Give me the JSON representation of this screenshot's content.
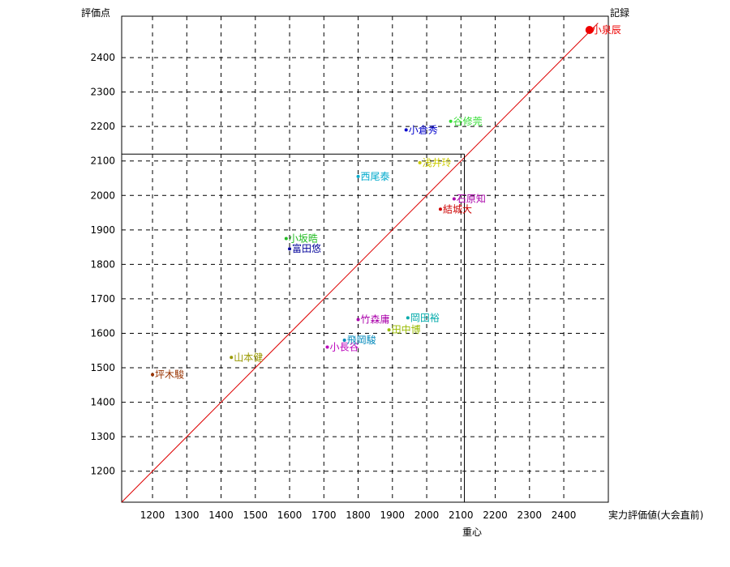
{
  "chart_data": {
    "type": "scatter",
    "title": "",
    "ylabel": "評価点",
    "xlabel": "実力評価値(大会直前)",
    "x_centroid_label": "重心",
    "record_label": "記録",
    "xlim": [
      1110,
      2530
    ],
    "ylim": [
      1110,
      2520
    ],
    "x_ticks": [
      1200,
      1300,
      1400,
      1500,
      1600,
      1700,
      1800,
      1900,
      2000,
      2100,
      2200,
      2300,
      2400
    ],
    "y_ticks": [
      1200,
      1300,
      1400,
      1500,
      1600,
      1700,
      1800,
      1900,
      2000,
      2100,
      2200,
      2300,
      2400
    ],
    "grid": true,
    "reference_line": {
      "x1": 1110,
      "y1": 1110,
      "x2": 2500,
      "y2": 2500,
      "color": "#dd0000"
    },
    "crosshair": {
      "x": 2110,
      "y": 2120
    },
    "points": [
      {
        "name": "小泉辰",
        "x": 2475,
        "y": 2480,
        "color": "#ee0000",
        "big": true
      },
      {
        "name": "谷修莞",
        "x": 2070,
        "y": 2215,
        "color": "#33dd33"
      },
      {
        "name": "小倉秀",
        "x": 1940,
        "y": 2190,
        "color": "#0000cc"
      },
      {
        "name": "浅井玲",
        "x": 1980,
        "y": 2095,
        "color": "#cccc00"
      },
      {
        "name": "西尾泰",
        "x": 1800,
        "y": 2055,
        "color": "#00aacc"
      },
      {
        "name": "石原知",
        "x": 2080,
        "y": 1990,
        "color": "#aa00aa"
      },
      {
        "name": "結城大",
        "x": 2040,
        "y": 1960,
        "color": "#cc0000"
      },
      {
        "name": "小坂晧",
        "x": 1590,
        "y": 1875,
        "color": "#22bb22"
      },
      {
        "name": "富田悠",
        "x": 1600,
        "y": 1845,
        "color": "#000099"
      },
      {
        "name": "竹森庸",
        "x": 1800,
        "y": 1640,
        "color": "#aa00aa"
      },
      {
        "name": "岡田裕",
        "x": 1945,
        "y": 1645,
        "color": "#00aaaa"
      },
      {
        "name": "田中博",
        "x": 1890,
        "y": 1610,
        "color": "#99bb00"
      },
      {
        "name": "飛岡駿",
        "x": 1760,
        "y": 1580,
        "color": "#0088bb"
      },
      {
        "name": "小長谷",
        "x": 1710,
        "y": 1560,
        "color": "#bb00bb"
      },
      {
        "name": "山本健",
        "x": 1430,
        "y": 1530,
        "color": "#999900"
      },
      {
        "name": "坪木駿",
        "x": 1200,
        "y": 1480,
        "color": "#993300"
      }
    ]
  }
}
